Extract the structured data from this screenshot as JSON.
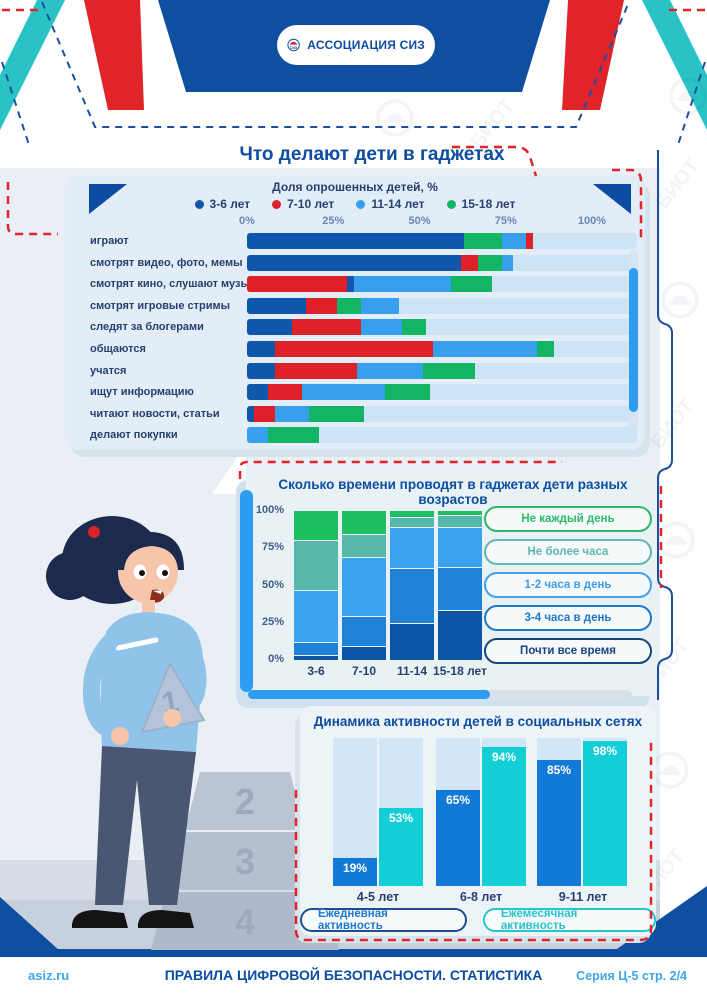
{
  "page": {
    "logo": {
      "org": "АССОЦИАЦИЯ СИЗ",
      "emblem": "СИЗ"
    },
    "watermark": "БИОТ",
    "footer": {
      "site": "asiz.ru",
      "title": "ПРАВИЛА ЦИФРОВОЙ БЕЗОПАСНОСТИ. СТАТИСТИКА",
      "series": "Серия Ц-5 стр. 2/4"
    }
  },
  "pyramid": {
    "held": "1",
    "levels": [
      "2",
      "3",
      "4"
    ]
  },
  "colors": {
    "age_3_6": "#0f57ad",
    "age_7_10": "#de2128",
    "age_11_14": "#36a0ee",
    "age_15_18": "#12b563",
    "not_daily": "#1fc061",
    "under_hour": "#57b7ab",
    "h1_2": "#3aa2f0",
    "h3_4": "#1e82d6",
    "almost_always": "#0b54a6",
    "pill_not_daily": "#2eb86a",
    "pill_under_hour": "#5fb7ad",
    "pill_h1_2": "#3f9fe8",
    "pill_h3_4": "#1e78c8",
    "pill_almost_always": "#17457e",
    "daily": "#1179d8",
    "monthly": "#12ced6",
    "pill_daily_border": "#1d4e8f",
    "pill_daily_text": "#1f78d0",
    "pill_monthly": "#27c4cc",
    "accent_navy": "#0c4da2",
    "accent_red": "#e02429",
    "accent_teal": "#29c3c6",
    "link_blue": "#3ea7e8"
  },
  "chart_data": [
    {
      "type": "stacked-bar-horizontal",
      "title": "Что делают дети в гаджетах",
      "subtitle": "Доля опрошенных детей, %",
      "xlim": [
        0,
        100
      ],
      "xticks": [
        "0%",
        "25%",
        "50%",
        "75%",
        "100%"
      ],
      "legend": [
        {
          "label": "3-6 лет",
          "key": "age_3_6"
        },
        {
          "label": "7-10 лет",
          "key": "age_7_10"
        },
        {
          "label": "11-14 лет",
          "key": "age_11_14"
        },
        {
          "label": "15-18 лет",
          "key": "age_15_18"
        }
      ],
      "rows": [
        {
          "label": "играют",
          "segments": [
            {
              "key": "age_3_6",
              "value": 63
            },
            {
              "key": "age_15_18",
              "value": 11
            },
            {
              "key": "age_11_14",
              "value": 7
            },
            {
              "key": "age_7_10",
              "value": 2
            }
          ]
        },
        {
          "label": "смотрят видео, фото, мемы",
          "segments": [
            {
              "key": "age_3_6",
              "value": 62
            },
            {
              "key": "age_7_10",
              "value": 5
            },
            {
              "key": "age_15_18",
              "value": 7
            },
            {
              "key": "age_11_14",
              "value": 3
            }
          ]
        },
        {
          "label": "смотрят кино, слушают музыку",
          "segments": [
            {
              "key": "age_7_10",
              "value": 29
            },
            {
              "key": "age_3_6",
              "value": 2
            },
            {
              "key": "age_11_14",
              "value": 28
            },
            {
              "key": "age_15_18",
              "value": 12
            }
          ]
        },
        {
          "label": "смотрят игровые стримы",
          "segments": [
            {
              "key": "age_3_6",
              "value": 17
            },
            {
              "key": "age_7_10",
              "value": 9
            },
            {
              "key": "age_15_18",
              "value": 7
            },
            {
              "key": "age_11_14",
              "value": 11
            }
          ]
        },
        {
          "label": "следят за блогерами",
          "segments": [
            {
              "key": "age_3_6",
              "value": 13
            },
            {
              "key": "age_7_10",
              "value": 20
            },
            {
              "key": "age_11_14",
              "value": 12
            },
            {
              "key": "age_15_18",
              "value": 7
            }
          ]
        },
        {
          "label": "общаются",
          "segments": [
            {
              "key": "age_3_6",
              "value": 8
            },
            {
              "key": "age_7_10",
              "value": 46
            },
            {
              "key": "age_11_14",
              "value": 30
            },
            {
              "key": "age_15_18",
              "value": 5
            }
          ]
        },
        {
          "label": "учатся",
          "segments": [
            {
              "key": "age_3_6",
              "value": 8
            },
            {
              "key": "age_7_10",
              "value": 24
            },
            {
              "key": "age_11_14",
              "value": 19
            },
            {
              "key": "age_15_18",
              "value": 15
            }
          ]
        },
        {
          "label": "ищут информацию",
          "segments": [
            {
              "key": "age_3_6",
              "value": 6
            },
            {
              "key": "age_7_10",
              "value": 10
            },
            {
              "key": "age_11_14",
              "value": 24
            },
            {
              "key": "age_15_18",
              "value": 13
            }
          ]
        },
        {
          "label": "читают новости, статьи",
          "segments": [
            {
              "key": "age_3_6",
              "value": 2
            },
            {
              "key": "age_7_10",
              "value": 6
            },
            {
              "key": "age_11_14",
              "value": 10
            },
            {
              "key": "age_15_18",
              "value": 16
            }
          ]
        },
        {
          "label": "делают покупки",
          "segments": [
            {
              "key": "age_11_14",
              "value": 6
            },
            {
              "key": "age_15_18",
              "value": 15
            }
          ]
        }
      ]
    },
    {
      "type": "stacked-bar-vertical-100",
      "title": "Сколько времени проводят в гаджетах дети разных возрастов",
      "categories": [
        "3-6",
        "7-10",
        "11-14",
        "15-18 лет"
      ],
      "yticks": [
        "100%",
        "75%",
        "50%",
        "25%",
        "0%"
      ],
      "ylim": [
        0,
        100
      ],
      "series_bottom_to_top": [
        {
          "name": "Почти все время",
          "key": "almost_always",
          "values": [
            3,
            9,
            25,
            34
          ]
        },
        {
          "name": "3-4 часа в день",
          "key": "h3_4",
          "values": [
            8,
            20,
            37,
            29
          ]
        },
        {
          "name": "1-2 часа в день",
          "key": "h1_2",
          "values": [
            35,
            40,
            28,
            27
          ]
        },
        {
          "name": "Не более часа",
          "key": "under_hour",
          "values": [
            34,
            15,
            6,
            7
          ]
        },
        {
          "name": "Не каждый день",
          "key": "not_daily",
          "values": [
            20,
            16,
            4,
            3
          ]
        }
      ],
      "legend_pills": [
        {
          "label": "Не каждый день",
          "key": "pill_not_daily"
        },
        {
          "label": "Не более часа",
          "key": "pill_under_hour"
        },
        {
          "label": "1-2 часа в день",
          "key": "pill_h1_2"
        },
        {
          "label": "3-4 часа в день",
          "key": "pill_h3_4"
        },
        {
          "label": "Почти все время",
          "key": "pill_almost_always"
        }
      ]
    },
    {
      "type": "grouped-bar",
      "title": "Динамика активности детей в социальных сетях",
      "ylim": [
        0,
        100
      ],
      "value_suffix": "%",
      "groups": [
        {
          "label": "4-5 лет",
          "daily": 19,
          "monthly": 53
        },
        {
          "label": "6-8 лет",
          "daily": 65,
          "monthly": 94
        },
        {
          "label": "9-11 лет",
          "daily": 85,
          "monthly": 98
        }
      ],
      "series": [
        {
          "name": "Ежедневная активность",
          "key": "daily"
        },
        {
          "name": "Ежемесячная активность",
          "key": "monthly"
        }
      ]
    }
  ]
}
